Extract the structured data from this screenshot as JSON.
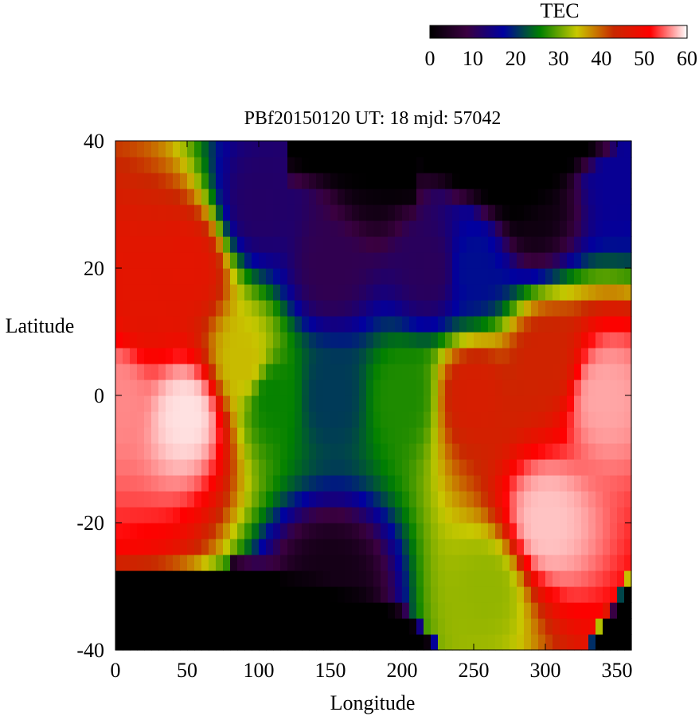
{
  "chart_data": {
    "type": "heatmap",
    "title": "PBf20150120  UT: 18  mjd: 57042",
    "xlabel": "Longitude",
    "ylabel": "Latitude",
    "xlim": [
      0,
      360
    ],
    "ylim": [
      -40,
      40
    ],
    "x_ticks": [
      "0",
      "50",
      "100",
      "150",
      "200",
      "250",
      "300",
      "350"
    ],
    "y_ticks": [
      "40",
      "20",
      "0",
      "-20",
      "-40"
    ],
    "grid": false,
    "colorbar": {
      "label": "TEC",
      "range": [
        0,
        60
      ],
      "ticks": [
        "0",
        "10",
        "20",
        "30",
        "40",
        "50",
        "60"
      ],
      "colors": [
        "#000000",
        "#3a0040",
        "#0000a0",
        "#008000",
        "#c8c800",
        "#c82800",
        "#ff0000",
        "#ffffff"
      ]
    },
    "grid_resolution": {
      "dlon": 5,
      "dlat": 2.5
    },
    "anchor_points": [
      {
        "lon": 0,
        "lat": 0,
        "tec": 56
      },
      {
        "lon": 20,
        "lat": 15,
        "tec": 47
      },
      {
        "lon": 50,
        "lat": -3,
        "tec": 59
      },
      {
        "lon": 50,
        "lat": 20,
        "tec": 47
      },
      {
        "lon": 90,
        "lat": 5,
        "tec": 35
      },
      {
        "lon": 100,
        "lat": 30,
        "tec": 12
      },
      {
        "lon": 110,
        "lat": 0,
        "tec": 26
      },
      {
        "lon": 150,
        "lat": 0,
        "tec": 21
      },
      {
        "lon": 150,
        "lat": 20,
        "tec": 10
      },
      {
        "lon": 150,
        "lat": -30,
        "tec": 3
      },
      {
        "lon": 180,
        "lat": 35,
        "tec": 2
      },
      {
        "lon": 200,
        "lat": 0,
        "tec": 27
      },
      {
        "lon": 220,
        "lat": 20,
        "tec": 11
      },
      {
        "lon": 250,
        "lat": 0,
        "tec": 45
      },
      {
        "lon": 250,
        "lat": 20,
        "tec": 18
      },
      {
        "lon": 260,
        "lat": -30,
        "tec": 32
      },
      {
        "lon": 290,
        "lat": 30,
        "tec": 2
      },
      {
        "lon": 300,
        "lat": -20,
        "tec": 58
      },
      {
        "lon": 300,
        "lat": 5,
        "tec": 44
      },
      {
        "lon": 340,
        "lat": 0,
        "tec": 57
      },
      {
        "lon": 355,
        "lat": 35,
        "tec": 16
      }
    ]
  }
}
